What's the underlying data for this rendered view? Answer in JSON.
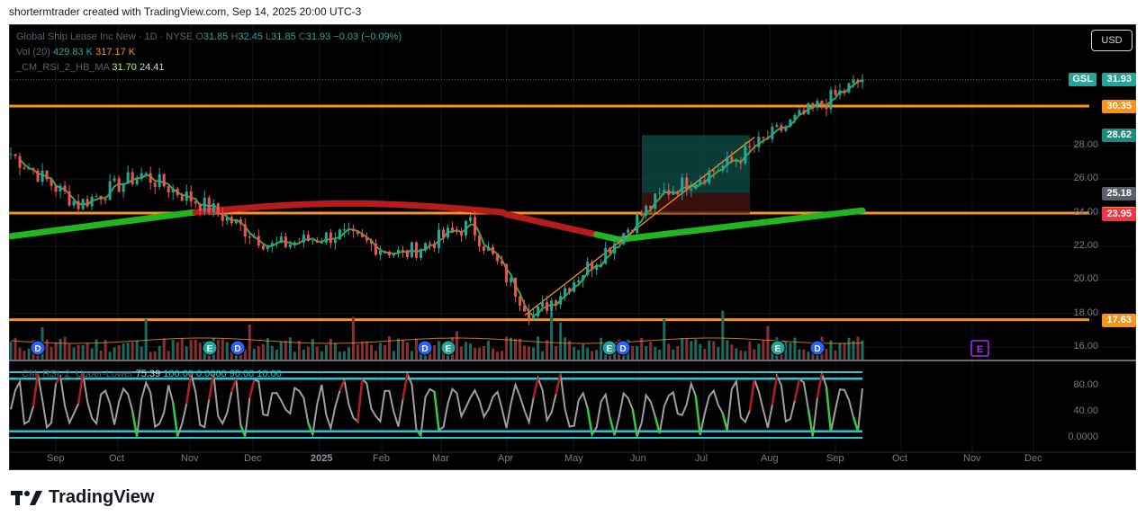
{
  "header": {
    "text": "shortermtrader created with TradingView.com, Sep 14, 2025 20:00 UTC-3"
  },
  "legend": {
    "title": "Global Ship Lease Inc New · 1D · NYSE",
    "o_label": "O",
    "o_value": "31.85",
    "h_label": "H",
    "h_value": "32.45",
    "l_label": "L",
    "l_value": "31.85",
    "c_label": "C",
    "c_value": "31.93",
    "change": "−0.03 (−0.09%)",
    "vol_label": "Vol (20)",
    "vol_value1": "429.83 K",
    "vol_value2": "317.17 K",
    "ind_label": "_CM_RSI_2_HB_MA",
    "ind_value1": "31.70",
    "ind_value2": "24.41",
    "rsi_label": "_CM_RSI_2_Upper-Lower",
    "rsi_values": [
      "75.39",
      "100.00",
      "0.0000",
      "90.00",
      "10.00"
    ]
  },
  "currency": "USD",
  "symbol": "GSL",
  "price_tags": [
    {
      "value": "31.93",
      "color": "#26a69a"
    },
    {
      "value": "30.35",
      "color": "#f7931a"
    },
    {
      "value": "28.62",
      "color": "#1b8a7a"
    },
    {
      "value": "25.18",
      "color": "#5d606b"
    },
    {
      "value": "23.98",
      "color": "#f7931a"
    },
    {
      "value": "23.95",
      "color": "#f23645"
    },
    {
      "value": "17.63",
      "color": "#f7931a"
    }
  ],
  "colors": {
    "up": "#26a69a",
    "down": "#ef5350",
    "hline": "#f7931a",
    "ma_green": "#22b522",
    "ma_red": "#b71c1c",
    "rsi": "#9e9e9e",
    "cyan": "#26c6da"
  },
  "chart_data": [
    {
      "type": "line",
      "title": "Global Ship Lease Inc New · 1D · NYSE",
      "x_ticks": [
        "Sep",
        "Oct",
        "Nov",
        "Dec",
        "2025",
        "Feb",
        "Mar",
        "Apr",
        "May",
        "Jun",
        "Jul",
        "Aug",
        "Sep",
        "Oct",
        "Nov",
        "Dec"
      ],
      "y_ticks": [
        "28.00",
        "26.00",
        "24.00",
        "22.00",
        "20.00",
        "18.00",
        "16.00"
      ],
      "ylim": [
        15.6,
        33.0
      ],
      "horizontal_levels": [
        30.35,
        23.98,
        17.63
      ],
      "series": [
        {
          "name": "GSL",
          "x": [
            "Aug",
            "Sep",
            "Oct",
            "Nov",
            "Dec",
            "Jan",
            "Feb",
            "Mar",
            "Apr",
            "May",
            "Jun",
            "Jul",
            "Aug",
            "Sep"
          ],
          "values": [
            27.5,
            24.5,
            26.3,
            24.3,
            22.0,
            22.7,
            21.5,
            23.3,
            17.8,
            21.5,
            25.2,
            27.0,
            29.5,
            31.93
          ]
        }
      ],
      "volume": {
        "label": "Vol (20)",
        "values": [
          "429.83 K",
          "317.17 K"
        ]
      }
    },
    {
      "type": "line",
      "title": "_CM_RSI_2_Upper-Lower",
      "y_ticks": [
        "80.00",
        "40.00",
        "0.0000"
      ],
      "ylim": [
        0,
        100
      ],
      "levels": [
        90,
        10
      ],
      "series": [
        {
          "name": "RSI",
          "values": [
            75.39
          ]
        }
      ]
    }
  ]
}
